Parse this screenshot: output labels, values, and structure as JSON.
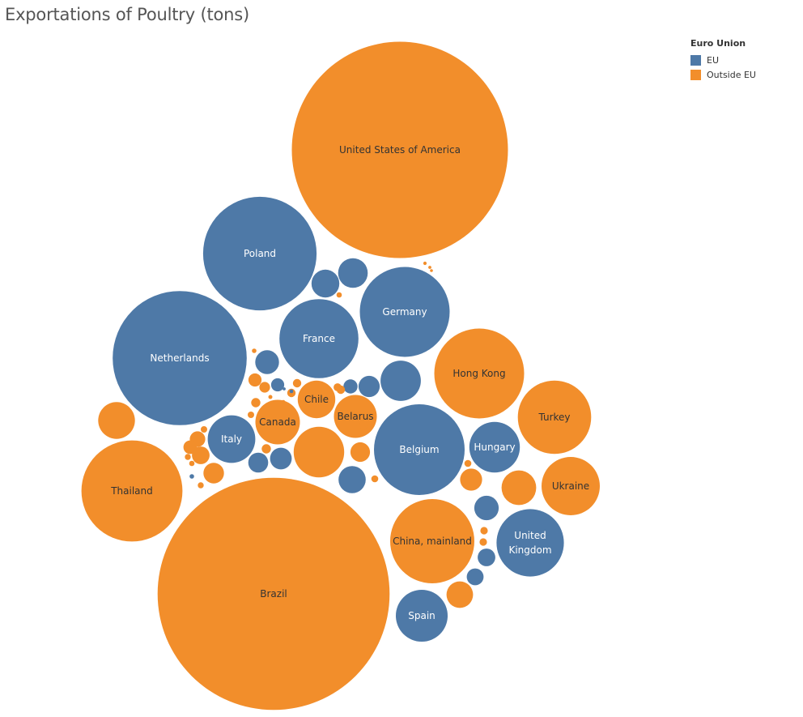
{
  "title": "Exportations of Poultry (tons)",
  "legend": {
    "title": "Euro Union",
    "items": [
      {
        "label": "EU",
        "color": "#4e79a7"
      },
      {
        "label": "Outside EU",
        "color": "#f28e2b"
      }
    ],
    "placement": "top-right"
  },
  "chart_data": {
    "type": "bubble",
    "size_field": "Exportations of Poultry (tons)",
    "color_field": "Euro Union",
    "colors": {
      "EU": "#4e79a7",
      "Outside EU": "#f28e2b"
    },
    "label_colors": {
      "EU": "#ffffff",
      "Outside EU": "#333333"
    },
    "bubbles": [
      {
        "label": "United States of America",
        "group": "Outside EU",
        "value": 3300000
      },
      {
        "label": "Brazil",
        "group": "Outside EU",
        "value": 3800000
      },
      {
        "label": "Netherlands",
        "group": "EU",
        "value": 1270000
      },
      {
        "label": "Poland",
        "group": "EU",
        "value": 910000
      },
      {
        "label": "Thailand",
        "group": "Outside EU",
        "value": 720000
      },
      {
        "label": "Belgium",
        "group": "EU",
        "value": 580000
      },
      {
        "label": "Germany",
        "group": "EU",
        "value": 570000
      },
      {
        "label": "France",
        "group": "EU",
        "value": 440000
      },
      {
        "label": "China, mainland",
        "group": "Outside EU",
        "value": 500000
      },
      {
        "label": "Hong Kong",
        "group": "Outside EU",
        "value": 570000
      },
      {
        "label": "Turkey",
        "group": "Outside EU",
        "value": 380000
      },
      {
        "label": "United Kingdom",
        "group": "EU",
        "value": 320000
      },
      {
        "label": "Ukraine",
        "group": "Outside EU",
        "value": 240000
      },
      {
        "label": "Hungary",
        "group": "EU",
        "value": 180000
      },
      {
        "label": "Spain",
        "group": "EU",
        "value": 190000
      },
      {
        "label": "Italy",
        "group": "EU",
        "value": 160000
      },
      {
        "label": "Canada",
        "group": "Outside EU",
        "value": 140000
      },
      {
        "label": "Belarus",
        "group": "Outside EU",
        "value": 130000
      },
      {
        "label": "Chile",
        "group": "Outside EU",
        "value": 100000
      },
      {
        "label": "",
        "group": "Outside EU",
        "value": 180000
      },
      {
        "label": "",
        "group": "EU",
        "value": 115000
      },
      {
        "label": "",
        "group": "Outside EU",
        "value": 95000
      },
      {
        "label": "",
        "group": "Outside EU",
        "value": 85000
      },
      {
        "label": "",
        "group": "EU",
        "value": 62000
      },
      {
        "label": "",
        "group": "EU",
        "value": 55000
      },
      {
        "label": "",
        "group": "EU",
        "value": 40000
      },
      {
        "label": "",
        "group": "EU",
        "value": 52000
      },
      {
        "label": "",
        "group": "EU",
        "value": 42000
      },
      {
        "label": "",
        "group": "Outside EU",
        "value": 50000
      },
      {
        "label": "",
        "group": "EU",
        "value": 33000
      },
      {
        "label": "",
        "group": "EU",
        "value": 28000
      },
      {
        "label": "",
        "group": "EU",
        "value": 32000
      },
      {
        "label": "",
        "group": "Outside EU",
        "value": 34000
      },
      {
        "label": "",
        "group": "Outside EU",
        "value": 30000
      },
      {
        "label": "",
        "group": "Outside EU",
        "value": 27000
      },
      {
        "label": "",
        "group": "EU",
        "value": 22000
      },
      {
        "label": "",
        "group": "EU",
        "value": 20000
      },
      {
        "label": "",
        "group": "EU",
        "value": 14000
      },
      {
        "label": "",
        "group": "EU",
        "value": 12000
      },
      {
        "label": "",
        "group": "Outside EU",
        "value": 22000
      },
      {
        "label": "",
        "group": "Outside EU",
        "value": 17000
      },
      {
        "label": "",
        "group": "Outside EU",
        "value": 13000
      },
      {
        "label": "",
        "group": "Outside EU",
        "value": 12000
      },
      {
        "label": "",
        "group": "Outside EU",
        "value": 8000
      },
      {
        "label": "",
        "group": "Outside EU",
        "value": 6000
      },
      {
        "label": "",
        "group": "Outside EU",
        "value": 6000
      },
      {
        "label": "",
        "group": "Outside EU",
        "value": 5000
      },
      {
        "label": "",
        "group": "Outside EU",
        "value": 5000
      },
      {
        "label": "",
        "group": "Outside EU",
        "value": 5000
      },
      {
        "label": "",
        "group": "Outside EU",
        "value": 5000
      },
      {
        "label": "",
        "group": "Outside EU",
        "value": 4500
      },
      {
        "label": "",
        "group": "Outside EU",
        "value": 4000
      },
      {
        "label": "",
        "group": "Outside EU",
        "value": 4000
      },
      {
        "label": "",
        "group": "Outside EU",
        "value": 3500
      },
      {
        "label": "",
        "group": "Outside EU",
        "value": 3500
      },
      {
        "label": "",
        "group": "Outside EU",
        "value": 3000
      },
      {
        "label": "",
        "group": "Outside EU",
        "value": 3000
      },
      {
        "label": "",
        "group": "Outside EU",
        "value": 2500
      },
      {
        "label": "",
        "group": "Outside EU",
        "value": 2500
      },
      {
        "label": "",
        "group": "Outside EU",
        "value": 2000
      },
      {
        "label": "",
        "group": "Outside EU",
        "value": 2000
      },
      {
        "label": "",
        "group": "Outside EU",
        "value": 1500
      },
      {
        "label": "",
        "group": "Outside EU",
        "value": 1200
      },
      {
        "label": "",
        "group": "Outside EU",
        "value": 1000
      },
      {
        "label": "",
        "group": "Outside EU",
        "value": 800
      },
      {
        "label": "",
        "group": "Outside EU",
        "value": 700
      },
      {
        "label": "",
        "group": "Outside EU",
        "value": 600
      },
      {
        "label": "",
        "group": "EU",
        "value": 1500
      },
      {
        "label": "",
        "group": "EU",
        "value": 1000
      },
      {
        "label": "",
        "group": "EU",
        "value": 700
      }
    ]
  }
}
